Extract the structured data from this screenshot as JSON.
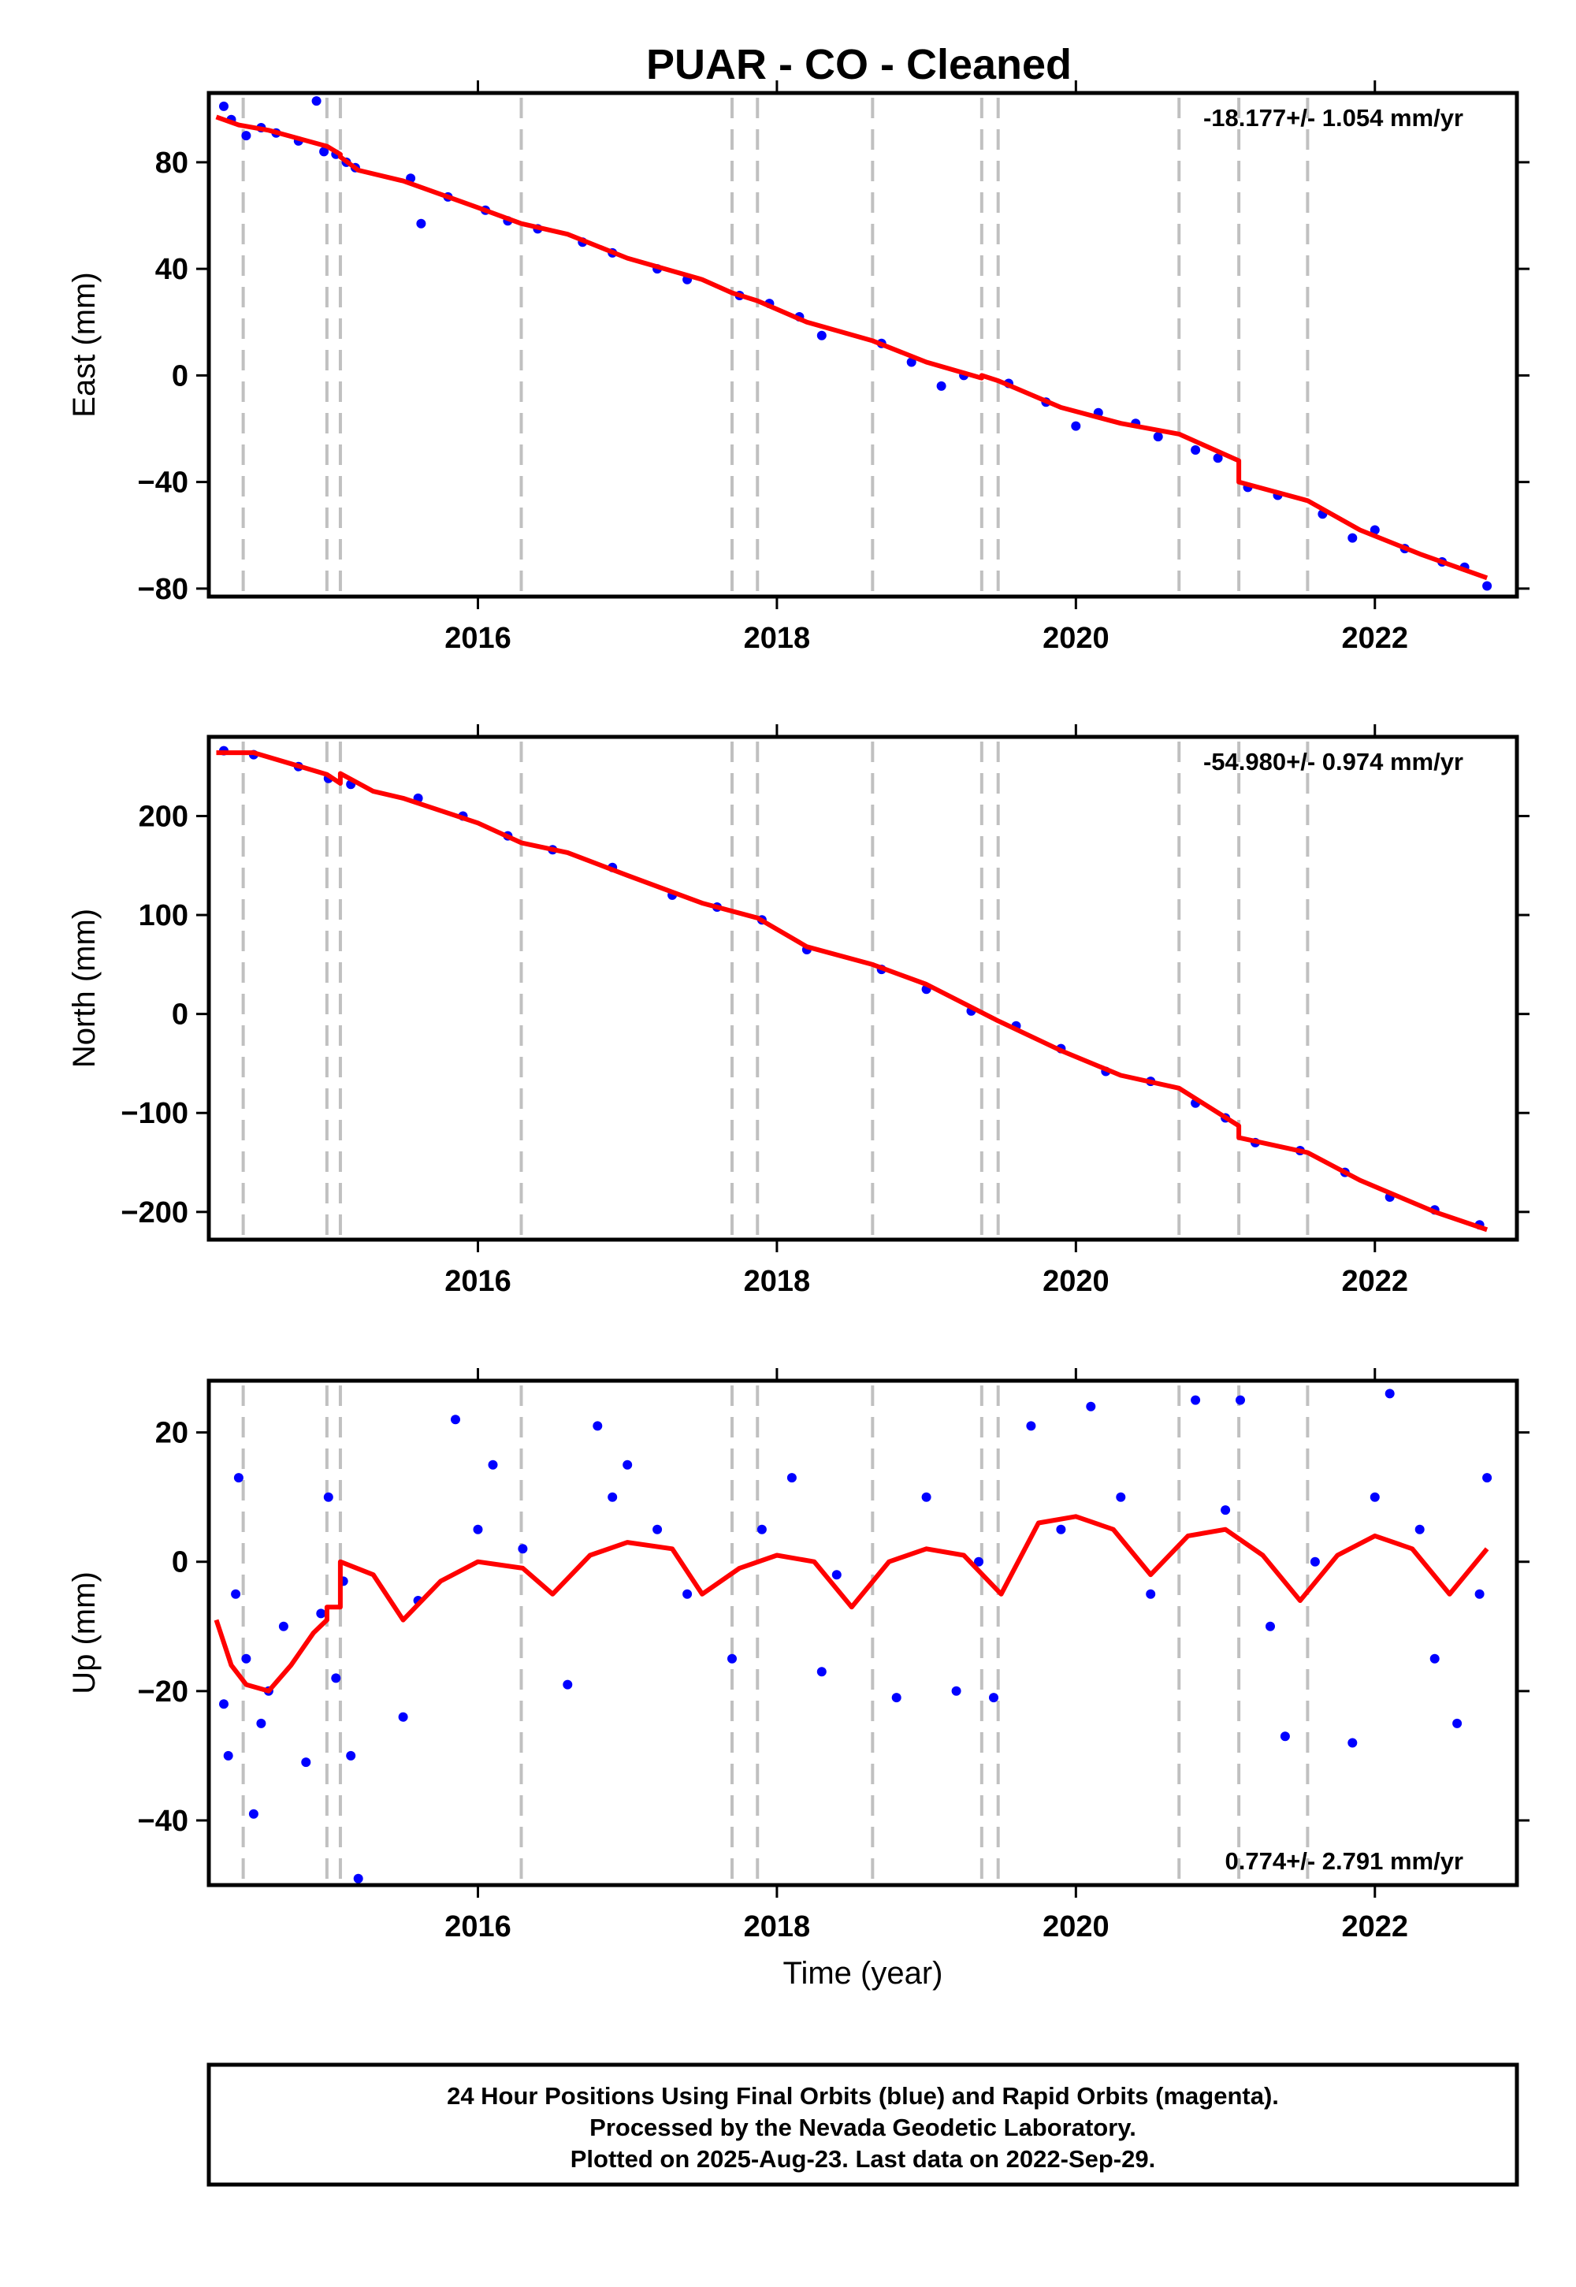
{
  "title": "PUAR  - CO - Cleaned",
  "footer": {
    "lines": [
      "24 Hour Positions Using Final Orbits (blue) and Rapid Orbits (magenta).",
      "Processed by the Nevada Geodetic Laboratory.",
      "Plotted on 2025-Aug-23. Last data on 2022-Sep-29."
    ]
  },
  "colors": {
    "points": "#0000ff",
    "model": "#ff0000",
    "steps": "#c0c0c0",
    "frame": "#000000"
  },
  "chart_data": [
    {
      "type": "scatter",
      "component": "east",
      "ylabel": "East (mm)",
      "xlabel": "",
      "rate_label": "-18.177+/- 1.054 mm/yr",
      "xlim": [
        2014.2,
        2022.95
      ],
      "ylim": [
        -83,
        106
      ],
      "y_ticks": [
        80,
        40,
        0,
        -40,
        -80
      ],
      "y_tick_labels": [
        "80",
        "40",
        "0",
        "−40",
        "−80"
      ],
      "x_ticks": [
        2016,
        2018,
        2020,
        2022
      ],
      "x_tick_labels": [
        "2016",
        "2018",
        "2020",
        "2022"
      ],
      "step_epochs": [
        2014.43,
        2014.99,
        2015.08,
        2016.29,
        2017.7,
        2017.87,
        2018.64,
        2019.37,
        2019.48,
        2020.69,
        2021.09,
        2021.55
      ],
      "model_line": {
        "x": [
          2014.25,
          2014.4,
          2014.6,
          2014.99,
          2014.99,
          2015.08,
          2015.08,
          2015.2,
          2015.5,
          2016.0,
          2016.29,
          2016.6,
          2017.0,
          2017.5,
          2017.7,
          2017.87,
          2018.2,
          2018.64,
          2019.0,
          2019.37,
          2019.37,
          2019.48,
          2019.9,
          2020.3,
          2020.69,
          2020.69,
          2021.09,
          2021.09,
          2021.55,
          2021.9,
          2022.3,
          2022.75
        ],
        "y": [
          97,
          94,
          92,
          86,
          86,
          83,
          82,
          77,
          73,
          63,
          57,
          53,
          44,
          36,
          31,
          28,
          20,
          13,
          5,
          -1,
          0,
          -2,
          -12,
          -18,
          -22,
          -22,
          -32,
          -40,
          -47,
          -58,
          -67,
          -76
        ]
      },
      "points": [
        [
          2014.3,
          101
        ],
        [
          2014.35,
          96
        ],
        [
          2014.45,
          90
        ],
        [
          2014.55,
          93
        ],
        [
          2014.65,
          91
        ],
        [
          2014.8,
          88
        ],
        [
          2014.92,
          103
        ],
        [
          2014.97,
          84
        ],
        [
          2015.05,
          83
        ],
        [
          2015.12,
          80
        ],
        [
          2015.18,
          78
        ],
        [
          2015.55,
          74
        ],
        [
          2015.62,
          57
        ],
        [
          2015.8,
          67
        ],
        [
          2016.05,
          62
        ],
        [
          2016.2,
          58
        ],
        [
          2016.4,
          55
        ],
        [
          2016.7,
          50
        ],
        [
          2016.9,
          46
        ],
        [
          2017.2,
          40
        ],
        [
          2017.4,
          36
        ],
        [
          2017.75,
          30
        ],
        [
          2017.95,
          27
        ],
        [
          2018.15,
          22
        ],
        [
          2018.3,
          15
        ],
        [
          2018.7,
          12
        ],
        [
          2018.9,
          5
        ],
        [
          2019.1,
          -4
        ],
        [
          2019.25,
          0
        ],
        [
          2019.55,
          -3
        ],
        [
          2019.8,
          -10
        ],
        [
          2020.0,
          -19
        ],
        [
          2020.15,
          -14
        ],
        [
          2020.4,
          -18
        ],
        [
          2020.55,
          -23
        ],
        [
          2020.8,
          -28
        ],
        [
          2020.95,
          -31
        ],
        [
          2021.15,
          -42
        ],
        [
          2021.35,
          -45
        ],
        [
          2021.65,
          -52
        ],
        [
          2021.85,
          -61
        ],
        [
          2022.0,
          -58
        ],
        [
          2022.2,
          -65
        ],
        [
          2022.45,
          -70
        ],
        [
          2022.6,
          -72
        ],
        [
          2022.75,
          -79
        ]
      ]
    },
    {
      "type": "scatter",
      "component": "north",
      "ylabel": "North (mm)",
      "xlabel": "",
      "rate_label": "-54.980+/- 0.974 mm/yr",
      "xlim": [
        2014.2,
        2022.95
      ],
      "ylim": [
        -228,
        280
      ],
      "y_ticks": [
        200,
        100,
        0,
        -100,
        -200
      ],
      "y_tick_labels": [
        "200",
        "100",
        "0",
        "−100",
        "−200"
      ],
      "x_ticks": [
        2016,
        2018,
        2020,
        2022
      ],
      "x_tick_labels": [
        "2016",
        "2018",
        "2020",
        "2022"
      ],
      "step_epochs": [
        2014.43,
        2014.99,
        2015.08,
        2016.29,
        2017.7,
        2017.87,
        2018.64,
        2019.37,
        2019.48,
        2020.69,
        2021.09,
        2021.55
      ],
      "model_line": {
        "x": [
          2014.25,
          2014.5,
          2014.99,
          2014.99,
          2015.08,
          2015.08,
          2015.3,
          2015.5,
          2016.0,
          2016.29,
          2016.6,
          2017.0,
          2017.5,
          2017.87,
          2018.2,
          2018.64,
          2019.0,
          2019.48,
          2019.9,
          2020.3,
          2020.69,
          2021.09,
          2021.09,
          2021.55,
          2021.9,
          2022.4,
          2022.75
        ],
        "y": [
          264,
          264,
          242,
          242,
          233,
          243,
          225,
          218,
          193,
          173,
          163,
          140,
          112,
          97,
          68,
          50,
          30,
          -7,
          -37,
          -62,
          -75,
          -113,
          -125,
          -140,
          -168,
          -200,
          -218
        ]
      },
      "points": [
        [
          2014.3,
          266
        ],
        [
          2014.5,
          262
        ],
        [
          2014.8,
          250
        ],
        [
          2015.0,
          238
        ],
        [
          2015.15,
          232
        ],
        [
          2015.6,
          218
        ],
        [
          2015.9,
          200
        ],
        [
          2016.2,
          180
        ],
        [
          2016.5,
          166
        ],
        [
          2016.9,
          148
        ],
        [
          2017.3,
          120
        ],
        [
          2017.6,
          108
        ],
        [
          2017.9,
          95
        ],
        [
          2018.2,
          65
        ],
        [
          2018.7,
          45
        ],
        [
          2019.0,
          25
        ],
        [
          2019.3,
          3
        ],
        [
          2019.6,
          -12
        ],
        [
          2019.9,
          -35
        ],
        [
          2020.2,
          -58
        ],
        [
          2020.5,
          -68
        ],
        [
          2020.8,
          -90
        ],
        [
          2021.0,
          -105
        ],
        [
          2021.2,
          -130
        ],
        [
          2021.5,
          -138
        ],
        [
          2021.8,
          -160
        ],
        [
          2022.1,
          -185
        ],
        [
          2022.4,
          -198
        ],
        [
          2022.7,
          -213
        ]
      ]
    },
    {
      "type": "scatter",
      "component": "up",
      "ylabel": "Up (mm)",
      "xlabel": "Time (year)",
      "rate_label": "0.774+/- 2.791 mm/yr",
      "xlim": [
        2014.2,
        2022.95
      ],
      "ylim": [
        -50,
        28
      ],
      "y_ticks": [
        20,
        0,
        -20,
        -40
      ],
      "y_tick_labels": [
        "20",
        "0",
        "−20",
        "−40"
      ],
      "x_ticks": [
        2016,
        2018,
        2020,
        2022
      ],
      "x_tick_labels": [
        "2016",
        "2018",
        "2020",
        "2022"
      ],
      "step_epochs": [
        2014.43,
        2014.99,
        2015.08,
        2016.29,
        2017.7,
        2017.87,
        2018.64,
        2019.37,
        2019.48,
        2020.69,
        2021.09,
        2021.55
      ],
      "model_line": {
        "x": [
          2014.25,
          2014.35,
          2014.45,
          2014.6,
          2014.75,
          2014.9,
          2014.99,
          2014.99,
          2015.08,
          2015.08,
          2015.3,
          2015.5,
          2015.75,
          2016.0,
          2016.3,
          2016.5,
          2016.75,
          2017.0,
          2017.3,
          2017.5,
          2017.75,
          2018.0,
          2018.25,
          2018.5,
          2018.75,
          2019.0,
          2019.25,
          2019.5,
          2019.75,
          2020.0,
          2020.25,
          2020.5,
          2020.75,
          2021.0,
          2021.25,
          2021.5,
          2021.75,
          2022.0,
          2022.25,
          2022.5,
          2022.75
        ],
        "y": [
          -9,
          -16,
          -19,
          -20,
          -16,
          -11,
          -9,
          -7,
          -7,
          0,
          -2,
          -9,
          -3,
          0,
          -1,
          -5,
          1,
          3,
          2,
          -5,
          -1,
          1,
          0,
          -7,
          0,
          2,
          1,
          -5,
          6,
          7,
          5,
          -2,
          4,
          5,
          1,
          -6,
          1,
          4,
          2,
          -5,
          2
        ]
      },
      "points": [
        [
          2014.3,
          -22
        ],
        [
          2014.33,
          -30
        ],
        [
          2014.38,
          -5
        ],
        [
          2014.4,
          13
        ],
        [
          2014.45,
          -15
        ],
        [
          2014.5,
          -39
        ],
        [
          2014.55,
          -25
        ],
        [
          2014.6,
          -20
        ],
        [
          2014.7,
          -10
        ],
        [
          2014.85,
          -31
        ],
        [
          2014.95,
          -8
        ],
        [
          2015.0,
          10
        ],
        [
          2015.05,
          -18
        ],
        [
          2015.1,
          -3
        ],
        [
          2015.15,
          -30
        ],
        [
          2015.2,
          -49
        ],
        [
          2015.5,
          -24
        ],
        [
          2015.6,
          -6
        ],
        [
          2015.85,
          22
        ],
        [
          2016.0,
          5
        ],
        [
          2016.1,
          15
        ],
        [
          2016.3,
          2
        ],
        [
          2016.6,
          -19
        ],
        [
          2016.8,
          21
        ],
        [
          2016.9,
          10
        ],
        [
          2017.0,
          15
        ],
        [
          2017.2,
          5
        ],
        [
          2017.4,
          -5
        ],
        [
          2017.7,
          -15
        ],
        [
          2017.9,
          5
        ],
        [
          2018.1,
          13
        ],
        [
          2018.3,
          -17
        ],
        [
          2018.4,
          -2
        ],
        [
          2018.8,
          -21
        ],
        [
          2019.0,
          10
        ],
        [
          2019.2,
          -20
        ],
        [
          2019.35,
          0
        ],
        [
          2019.45,
          -21
        ],
        [
          2019.7,
          21
        ],
        [
          2019.9,
          5
        ],
        [
          2020.1,
          24
        ],
        [
          2020.3,
          10
        ],
        [
          2020.5,
          -5
        ],
        [
          2020.8,
          25
        ],
        [
          2021.0,
          8
        ],
        [
          2021.1,
          25
        ],
        [
          2021.3,
          -10
        ],
        [
          2021.4,
          -27
        ],
        [
          2021.6,
          0
        ],
        [
          2021.85,
          -28
        ],
        [
          2022.0,
          10
        ],
        [
          2022.1,
          26
        ],
        [
          2022.3,
          5
        ],
        [
          2022.4,
          -15
        ],
        [
          2022.55,
          -25
        ],
        [
          2022.7,
          -5
        ],
        [
          2022.75,
          13
        ]
      ]
    }
  ]
}
